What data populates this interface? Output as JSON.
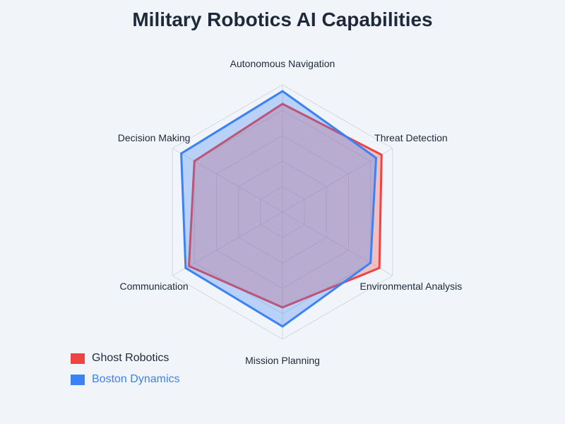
{
  "chart_data": {
    "type": "radar",
    "title": "Military Robotics AI Capabilities",
    "categories": [
      "Autonomous Navigation",
      "Threat Detection",
      "Environmental Analysis",
      "Mission Planning",
      "Communication",
      "Decision Making"
    ],
    "range": [
      0,
      100
    ],
    "grid_levels": 5,
    "grid": true,
    "legend_position": "bottom-left",
    "series": [
      {
        "name": "Ghost Robotics",
        "color": "#ef4444",
        "values": [
          85,
          90,
          88,
          75,
          85,
          80
        ]
      },
      {
        "name": "Boston Dynamics",
        "color": "#3b82f6",
        "values": [
          95,
          85,
          80,
          90,
          88,
          92
        ]
      }
    ]
  },
  "legend": {
    "label_colors": [
      "#1e2a3b",
      "#3b82f6"
    ]
  }
}
